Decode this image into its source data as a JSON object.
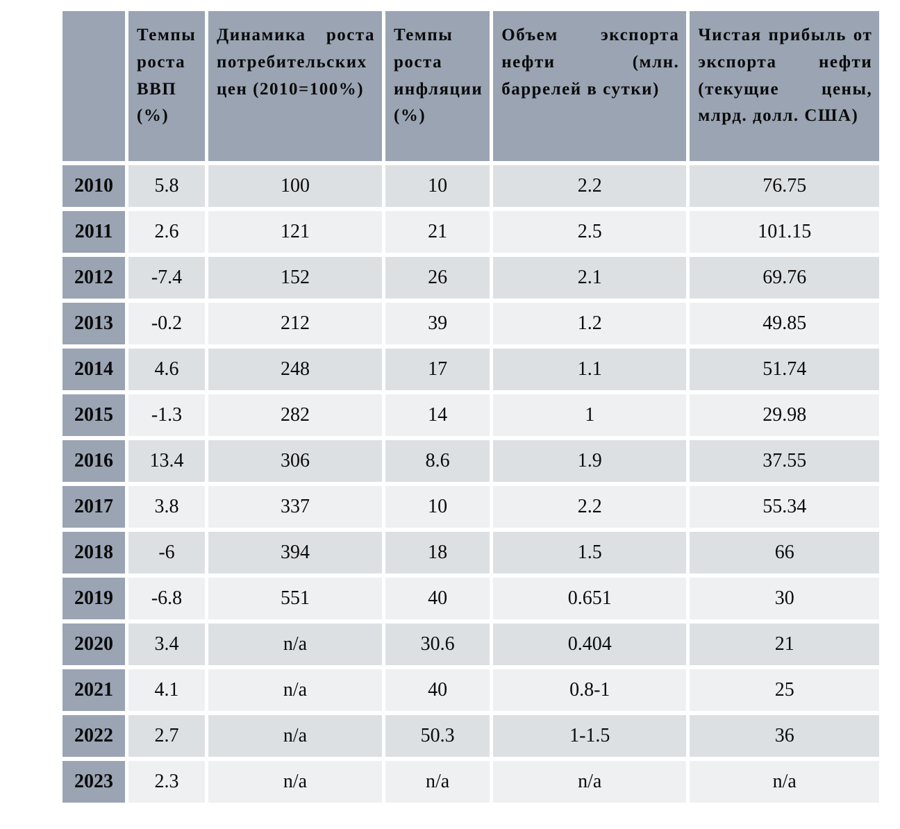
{
  "colors": {
    "header_bg": "#9aa4b3",
    "row_dark": "#dde0e3",
    "row_light": "#eff0f2",
    "text": "#0a0a0a",
    "page_bg": "#ffffff"
  },
  "table": {
    "corner_label": "",
    "columns": [
      {
        "label": "Темпы роста ВВП (%)"
      },
      {
        "label": "Динамика роста потребительских цен (2010=100%)"
      },
      {
        "label": "Темпы роста инфляции (%)"
      },
      {
        "label": "Объем экспорта нефти (млн. баррелей в сутки)"
      },
      {
        "label": "Чистая прибыль от экспорта нефти (текущие цены, млрд. долл. США)"
      }
    ],
    "rows": [
      {
        "year": "2010",
        "values": [
          "5.8",
          "100",
          "10",
          "2.2",
          "76.75"
        ]
      },
      {
        "year": "2011",
        "values": [
          "2.6",
          "121",
          "21",
          "2.5",
          "101.15"
        ]
      },
      {
        "year": "2012",
        "values": [
          "-7.4",
          "152",
          "26",
          "2.1",
          "69.76"
        ]
      },
      {
        "year": "2013",
        "values": [
          "-0.2",
          "212",
          "39",
          "1.2",
          "49.85"
        ]
      },
      {
        "year": "2014",
        "values": [
          "4.6",
          "248",
          "17",
          "1.1",
          "51.74"
        ]
      },
      {
        "year": "2015",
        "values": [
          "-1.3",
          "282",
          "14",
          "1",
          "29.98"
        ]
      },
      {
        "year": "2016",
        "values": [
          "13.4",
          "306",
          "8.6",
          "1.9",
          "37.55"
        ]
      },
      {
        "year": "2017",
        "values": [
          "3.8",
          "337",
          "10",
          "2.2",
          "55.34"
        ]
      },
      {
        "year": "2018",
        "values": [
          "-6",
          "394",
          "18",
          "1.5",
          "66"
        ]
      },
      {
        "year": "2019",
        "values": [
          "-6.8",
          "551",
          "40",
          "0.651",
          "30"
        ]
      },
      {
        "year": "2020",
        "values": [
          "3.4",
          "n/a",
          "30.6",
          "0.404",
          "21"
        ]
      },
      {
        "year": "2021",
        "values": [
          "4.1",
          "n/a",
          "40",
          "0.8-1",
          "25"
        ]
      },
      {
        "year": "2022",
        "values": [
          "2.7",
          "n/a",
          "50.3",
          "1-1.5",
          "36"
        ]
      },
      {
        "year": "2023",
        "values": [
          "2.3",
          "n/a",
          "n/a",
          "n/a",
          "n/a"
        ]
      }
    ]
  },
  "chart_data": {
    "type": "table",
    "title": "",
    "categories": [
      "2010",
      "2011",
      "2012",
      "2013",
      "2014",
      "2015",
      "2016",
      "2017",
      "2018",
      "2019",
      "2020",
      "2021",
      "2022",
      "2023"
    ],
    "series": [
      {
        "name": "Темпы роста ВВП (%)",
        "values": [
          "5.8",
          "2.6",
          "-7.4",
          "-0.2",
          "4.6",
          "-1.3",
          "13.4",
          "3.8",
          "-6",
          "-6.8",
          "3.4",
          "4.1",
          "2.7",
          "2.3"
        ]
      },
      {
        "name": "Динамика роста потребительских цен (2010=100%)",
        "values": [
          "100",
          "121",
          "152",
          "212",
          "248",
          "282",
          "306",
          "337",
          "394",
          "551",
          "n/a",
          "n/a",
          "n/a",
          "n/a"
        ]
      },
      {
        "name": "Темпы роста инфляции (%)",
        "values": [
          "10",
          "21",
          "26",
          "39",
          "17",
          "14",
          "8.6",
          "10",
          "18",
          "40",
          "30.6",
          "40",
          "50.3",
          "n/a"
        ]
      },
      {
        "name": "Объем экспорта нефти (млн. баррелей в сутки)",
        "values": [
          "2.2",
          "2.5",
          "2.1",
          "1.2",
          "1.1",
          "1",
          "1.9",
          "2.2",
          "1.5",
          "0.651",
          "0.404",
          "0.8-1",
          "1-1.5",
          "n/a"
        ]
      },
      {
        "name": "Чистая прибыль от экспорта нефти (текущие цены, млрд. долл. США)",
        "values": [
          "76.75",
          "101.15",
          "69.76",
          "49.85",
          "51.74",
          "29.98",
          "37.55",
          "55.34",
          "66",
          "30",
          "21",
          "25",
          "36",
          "n/a"
        ]
      }
    ]
  }
}
